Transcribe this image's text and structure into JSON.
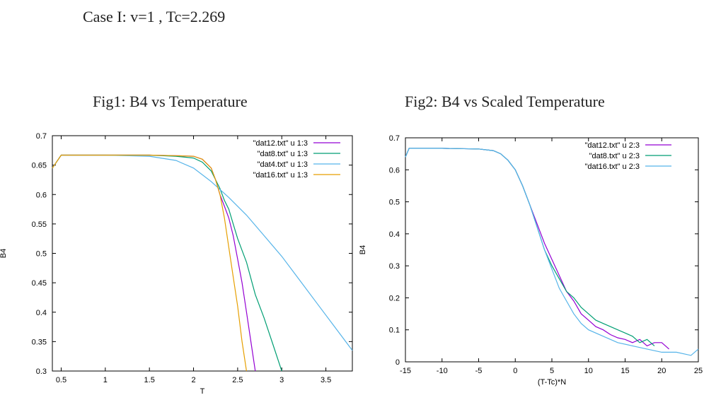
{
  "page": {
    "case_title": "Case I: v=1 , Tc=2.269",
    "fig1_title": "Fig1: B4 vs Temperature",
    "fig2_title": "Fig2: B4 vs Scaled Temperature"
  },
  "chart_data": [
    {
      "type": "line",
      "title": "Fig1: B4 vs Temperature",
      "xlabel": "T",
      "ylabel": "B4",
      "xlim": [
        0.4,
        3.8
      ],
      "ylim": [
        0.3,
        0.7
      ],
      "xticks": [
        0.5,
        1,
        1.5,
        2,
        2.5,
        3,
        3.5
      ],
      "xtick_labels": [
        "0.5",
        "1",
        "1.5",
        "2",
        "2.5",
        "3",
        "3.5"
      ],
      "yticks": [
        0.3,
        0.35,
        0.4,
        0.45,
        0.5,
        0.55,
        0.6,
        0.65,
        0.7
      ],
      "ytick_labels": [
        "0.3",
        "0.35",
        "0.4",
        "0.45",
        "0.5",
        "0.55",
        "0.6",
        "0.65",
        "0.7"
      ],
      "grid": false,
      "legend_position": "top-right",
      "series": [
        {
          "name": "\"dat12.txt\" u 1:3",
          "color": "#9400d3",
          "x": [
            0.4,
            0.5,
            1.0,
            1.5,
            1.8,
            2.0,
            2.1,
            2.2,
            2.25,
            2.3,
            2.35,
            2.4,
            2.45,
            2.5,
            2.55,
            2.6,
            2.65,
            2.7
          ],
          "y": [
            0.645,
            0.667,
            0.667,
            0.667,
            0.666,
            0.665,
            0.66,
            0.645,
            0.625,
            0.6,
            0.58,
            0.56,
            0.53,
            0.49,
            0.45,
            0.4,
            0.35,
            0.3
          ]
        },
        {
          "name": "\"dat8.txt\" u 1:3",
          "color": "#009e73",
          "x": [
            0.4,
            0.5,
            1.0,
            1.5,
            1.8,
            2.0,
            2.1,
            2.2,
            2.25,
            2.3,
            2.35,
            2.4,
            2.45,
            2.5,
            2.55,
            2.6,
            2.7,
            2.8,
            2.9,
            3.0
          ],
          "y": [
            0.645,
            0.667,
            0.667,
            0.667,
            0.665,
            0.662,
            0.655,
            0.64,
            0.625,
            0.61,
            0.59,
            0.575,
            0.55,
            0.525,
            0.505,
            0.485,
            0.43,
            0.39,
            0.345,
            0.3
          ]
        },
        {
          "name": "\"dat4.txt\" u 1:3",
          "color": "#56b4e9",
          "x": [
            0.4,
            0.5,
            1.0,
            1.5,
            1.8,
            2.0,
            2.2,
            2.4,
            2.6,
            2.8,
            3.0,
            3.2,
            3.4,
            3.6,
            3.8
          ],
          "y": [
            0.645,
            0.667,
            0.667,
            0.665,
            0.658,
            0.645,
            0.622,
            0.595,
            0.565,
            0.53,
            0.495,
            0.455,
            0.415,
            0.375,
            0.335
          ]
        },
        {
          "name": "\"dat16.txt\" u 1:3",
          "color": "#e69f00",
          "x": [
            0.4,
            0.5,
            1.0,
            1.5,
            1.8,
            2.0,
            2.1,
            2.2,
            2.25,
            2.3,
            2.35,
            2.4,
            2.45,
            2.5,
            2.55,
            2.6
          ],
          "y": [
            0.645,
            0.667,
            0.667,
            0.667,
            0.666,
            0.665,
            0.66,
            0.645,
            0.625,
            0.6,
            0.56,
            0.51,
            0.46,
            0.41,
            0.35,
            0.3
          ]
        }
      ]
    },
    {
      "type": "line",
      "title": "Fig2: B4 vs Scaled Temperature",
      "xlabel": "(T-Tc)*N",
      "ylabel": "B4",
      "xlim": [
        -15,
        25
      ],
      "ylim": [
        0,
        0.7
      ],
      "xticks": [
        -15,
        -10,
        -5,
        0,
        5,
        10,
        15,
        20,
        25
      ],
      "xtick_labels": [
        "-15",
        "-10",
        "-5",
        "0",
        "5",
        "10",
        "15",
        "20",
        "25"
      ],
      "yticks": [
        0,
        0.1,
        0.2,
        0.3,
        0.4,
        0.5,
        0.6,
        0.7
      ],
      "ytick_labels": [
        "0",
        "0.1",
        "0.2",
        "0.3",
        "0.4",
        "0.5",
        "0.6",
        "0.7"
      ],
      "grid": false,
      "legend_position": "top-right",
      "series": [
        {
          "name": "\"dat12.txt\" u 2:3",
          "color": "#9400d3",
          "x": [
            -15,
            -14.5,
            -10,
            -5,
            -3,
            -2,
            -1,
            0,
            1,
            2,
            3,
            4,
            5,
            6,
            7,
            8,
            9,
            10,
            11,
            12,
            13,
            14,
            15,
            16,
            17,
            18,
            19,
            20,
            21
          ],
          "y": [
            0.64,
            0.667,
            0.667,
            0.665,
            0.66,
            0.65,
            0.63,
            0.6,
            0.55,
            0.49,
            0.43,
            0.37,
            0.32,
            0.27,
            0.22,
            0.19,
            0.15,
            0.13,
            0.11,
            0.1,
            0.085,
            0.075,
            0.07,
            0.06,
            0.07,
            0.05,
            0.06,
            0.06,
            0.04
          ]
        },
        {
          "name": "\"dat8.txt\" u 2:3",
          "color": "#009e73",
          "x": [
            -15,
            -14.5,
            -10,
            -5,
            -3,
            -2,
            -1,
            0,
            1,
            2,
            3,
            4,
            5,
            6,
            7,
            8,
            9,
            10,
            11,
            12,
            13,
            14,
            15,
            16,
            17,
            18,
            19
          ],
          "y": [
            0.64,
            0.667,
            0.667,
            0.665,
            0.66,
            0.65,
            0.63,
            0.6,
            0.55,
            0.49,
            0.42,
            0.35,
            0.3,
            0.26,
            0.22,
            0.2,
            0.17,
            0.15,
            0.13,
            0.12,
            0.11,
            0.1,
            0.09,
            0.08,
            0.06,
            0.07,
            0.05
          ]
        },
        {
          "name": "\"dat16.txt\" u 2:3",
          "color": "#56b4e9",
          "x": [
            -15,
            -14.5,
            -10,
            -5,
            -3,
            -2,
            -1,
            0,
            1,
            2,
            3,
            4,
            5,
            6,
            7,
            8,
            9,
            10,
            12,
            14,
            16,
            18,
            20,
            22,
            24,
            25
          ],
          "y": [
            0.64,
            0.667,
            0.667,
            0.665,
            0.66,
            0.65,
            0.63,
            0.6,
            0.55,
            0.49,
            0.42,
            0.35,
            0.29,
            0.23,
            0.19,
            0.15,
            0.12,
            0.1,
            0.08,
            0.06,
            0.05,
            0.04,
            0.03,
            0.03,
            0.02,
            0.04
          ]
        }
      ]
    }
  ]
}
